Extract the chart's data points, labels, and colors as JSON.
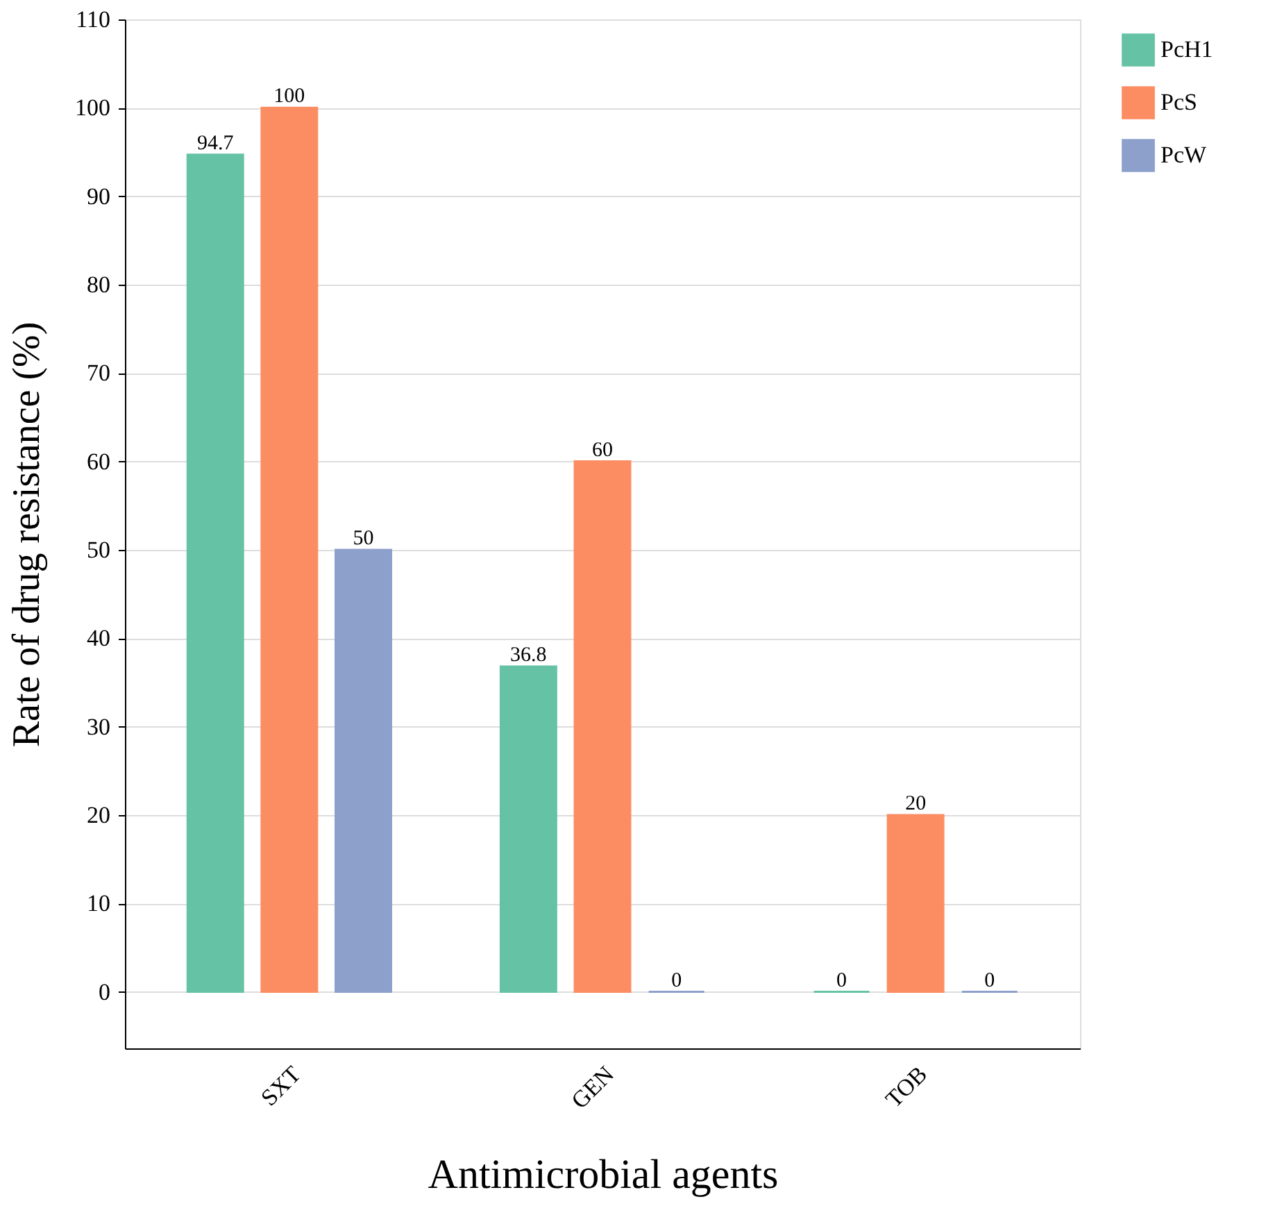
{
  "chart_data": {
    "type": "bar",
    "xlabel": "Antimicrobial agents",
    "ylabel": "Rate of drug resistance (%)",
    "categories": [
      "SXT",
      "GEN",
      "TOB"
    ],
    "series": [
      {
        "name": "PcH1",
        "color": "#66c2a5",
        "values": [
          94.7,
          36.8,
          0
        ]
      },
      {
        "name": "PcS",
        "color": "#fc8d62",
        "values": [
          100,
          60,
          20
        ]
      },
      {
        "name": "PcW",
        "color": "#8da0cb",
        "values": [
          50,
          0,
          0
        ]
      }
    ],
    "ylim": [
      -6.4,
      110
    ],
    "yticks": [
      0,
      10,
      20,
      30,
      40,
      50,
      60,
      70,
      80,
      90,
      100,
      110
    ],
    "grid": "y",
    "legend": "top right",
    "data_labels": true
  }
}
